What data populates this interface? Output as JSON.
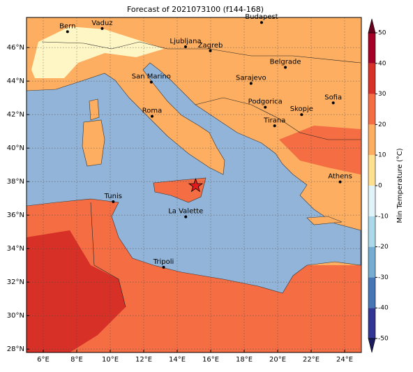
{
  "title": "Forecast of 2021073100 (f144-168)",
  "map": {
    "lon_range": [
      5,
      25
    ],
    "lat_range": [
      27.8,
      47.8
    ],
    "lon_ticks": [
      {
        "value": 6,
        "label": "6°E"
      },
      {
        "value": 8,
        "label": "8°E"
      },
      {
        "value": 10,
        "label": "10°E"
      },
      {
        "value": 12,
        "label": "12°E"
      },
      {
        "value": 14,
        "label": "14°E"
      },
      {
        "value": 16,
        "label": "16°E"
      },
      {
        "value": 18,
        "label": "18°E"
      },
      {
        "value": 20,
        "label": "20°E"
      },
      {
        "value": 22,
        "label": "22°E"
      },
      {
        "value": 24,
        "label": "24°E"
      }
    ],
    "lat_ticks": [
      {
        "value": 28,
        "label": "28°N"
      },
      {
        "value": 30,
        "label": "30°N"
      },
      {
        "value": 32,
        "label": "32°N"
      },
      {
        "value": 34,
        "label": "34°N"
      },
      {
        "value": 36,
        "label": "36°N"
      },
      {
        "value": 38,
        "label": "38°N"
      },
      {
        "value": 40,
        "label": "40°N"
      },
      {
        "value": 42,
        "label": "42°N"
      },
      {
        "value": 44,
        "label": "44°N"
      },
      {
        "value": 46,
        "label": "46°N"
      }
    ],
    "cities": [
      {
        "name": "Bern",
        "lon": 7.45,
        "lat": 46.95
      },
      {
        "name": "Vaduz",
        "lon": 9.52,
        "lat": 47.14
      },
      {
        "name": "Budapest",
        "lon": 19.04,
        "lat": 47.5
      },
      {
        "name": "Ljubljana",
        "lon": 14.5,
        "lat": 46.05
      },
      {
        "name": "Zagreb",
        "lon": 15.98,
        "lat": 45.81
      },
      {
        "name": "Belgrade",
        "lon": 20.46,
        "lat": 44.82
      },
      {
        "name": "San Marino",
        "lon": 12.45,
        "lat": 43.94
      },
      {
        "name": "Sarajevo",
        "lon": 18.41,
        "lat": 43.86
      },
      {
        "name": "Sofia",
        "lon": 23.32,
        "lat": 42.7
      },
      {
        "name": "Roma",
        "lon": 12.5,
        "lat": 41.9
      },
      {
        "name": "Podgorica",
        "lon": 19.26,
        "lat": 42.44
      },
      {
        "name": "Skopje",
        "lon": 21.43,
        "lat": 42.0
      },
      {
        "name": "Tirana",
        "lon": 19.82,
        "lat": 41.33
      },
      {
        "name": "Athens",
        "lon": 23.73,
        "lat": 37.98
      },
      {
        "name": "Tunis",
        "lon": 10.18,
        "lat": 36.8
      },
      {
        "name": "La Valette",
        "lon": 14.51,
        "lat": 35.9
      },
      {
        "name": "Tripoli",
        "lon": 13.19,
        "lat": 32.89
      }
    ],
    "marker": {
      "lon": 15.1,
      "lat": 37.75
    }
  },
  "colorbar": {
    "label": "Min Temperature (°C)",
    "ticks": [
      -50,
      -40,
      -30,
      -20,
      -10,
      0,
      10,
      20,
      30,
      40,
      50
    ],
    "colors": [
      "#313695",
      "#4575b4",
      "#74add1",
      "#abd9e9",
      "#e0f3f8",
      "#fee090",
      "#fdae61",
      "#f46d43",
      "#d73027",
      "#a50026"
    ]
  }
}
